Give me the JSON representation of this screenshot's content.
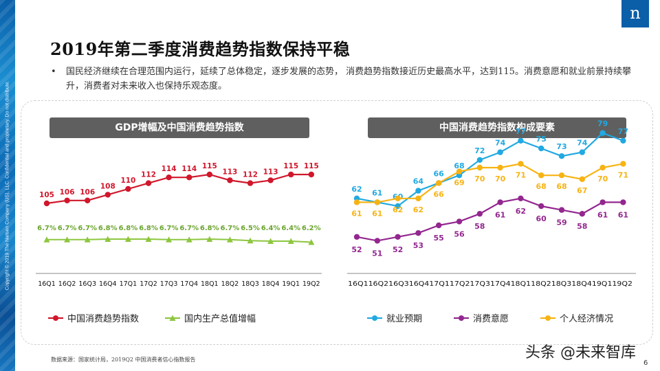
{
  "side_text": "Copyright © 2019 The Nielsen Company (US), LLC. Confidential and proprietary. Do not distribute.",
  "logo": "n",
  "title": "2019年第二季度消费趋势指数保持平稳",
  "bullet": "•",
  "description": "国民经济继续在合理范围内运行，延续了总体稳定，逐步发展的态势， 消费趋势指数接近历史最高水平，达到115。消费意愿和就业前景持续攀升，消费者对未来收入也保持乐观态度。",
  "source": "数据来源：国家统计局，2019Q2 中国消费者信心指数报告",
  "watermark": "头条 @未来智库",
  "page_number": "6",
  "chart_data": [
    {
      "type": "line",
      "title": "GDP增幅及中国消费趋势指数",
      "categories": [
        "16Q1",
        "16Q2",
        "16Q3",
        "16Q4",
        "17Q1",
        "17Q2",
        "17Q3",
        "17Q4",
        "18Q1",
        "18Q2",
        "18Q3",
        "18Q4",
        "19Q1",
        "19Q2"
      ],
      "series": [
        {
          "name": "中国消费趋势指数",
          "color": "#d0172b",
          "values": [
            105,
            106,
            106,
            108,
            110,
            112,
            114,
            114,
            115,
            113,
            112,
            113,
            115,
            115
          ],
          "labels": [
            "105",
            "106",
            "106",
            "108",
            "110",
            "112",
            "114",
            "114",
            "115",
            "113",
            "112",
            "113",
            "115",
            "115"
          ]
        },
        {
          "name": "国内生产总值增幅",
          "color": "#8dc63f",
          "values": [
            6.7,
            6.7,
            6.7,
            6.8,
            6.8,
            6.8,
            6.7,
            6.7,
            6.8,
            6.7,
            6.5,
            6.4,
            6.4,
            6.2
          ],
          "labels": [
            "6.7%",
            "6.7%",
            "6.7%",
            "6.8%",
            "6.8%",
            "6.8%",
            "6.7%",
            "6.7%",
            "6.8%",
            "6.7%",
            "6.5%",
            "6.4%",
            "6.4%",
            "6.2%"
          ]
        }
      ],
      "legend": "bottom",
      "grid": false
    },
    {
      "type": "line",
      "title": "中国消费趋势指数构成要素",
      "categories": [
        "16Q1",
        "16Q2",
        "16Q3",
        "16Q4",
        "17Q1",
        "17Q2",
        "17Q3",
        "17Q4",
        "18Q1",
        "18Q2",
        "18Q3",
        "18Q4",
        "19Q1",
        "19Q2"
      ],
      "x_axis_text": "16Q116Q216Q316Q417Q117Q217Q317Q418Q118Q218Q318Q419Q119Q2",
      "series": [
        {
          "name": "就业预期",
          "color": "#21a9e1",
          "values": [
            62,
            61,
            60,
            64,
            66,
            68,
            72,
            74,
            77,
            75,
            73,
            74,
            79,
            77
          ],
          "labels": [
            "62",
            "61",
            "60",
            "64",
            "66",
            "68",
            "72",
            "74",
            "77",
            "75",
            "73",
            "74",
            "79",
            "77"
          ]
        },
        {
          "name": "消费意愿",
          "color": "#93278f",
          "values": [
            52,
            51,
            52,
            53,
            55,
            56,
            58,
            61,
            62,
            60,
            59,
            58,
            61,
            61
          ],
          "labels": [
            "52",
            "51",
            "52",
            "53",
            "55",
            "56",
            "58",
            "61",
            "62",
            "60",
            "59",
            "58",
            "61",
            "61"
          ]
        },
        {
          "name": "个人经济情况",
          "color": "#f7b313",
          "values": [
            61,
            61,
            62,
            62,
            66,
            69,
            70,
            70,
            71,
            68,
            68,
            67,
            70,
            71
          ],
          "labels": [
            "61",
            "61",
            "62",
            "62",
            "66",
            "69",
            "70",
            "70",
            "71",
            "68",
            "68",
            "67",
            "70",
            "71"
          ]
        }
      ],
      "legend": "bottom",
      "grid": false
    }
  ]
}
